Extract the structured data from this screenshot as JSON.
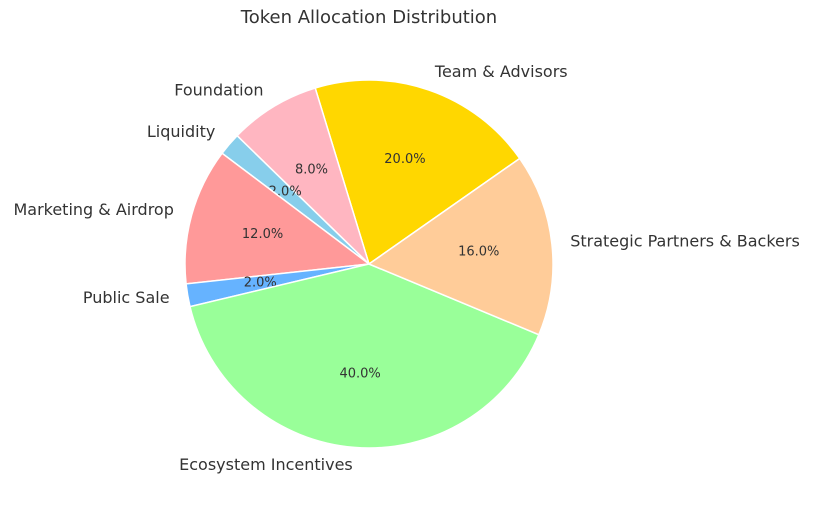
{
  "chart_data": {
    "type": "pie",
    "title": "Token Allocation Distribution",
    "categories": [
      "Team & Advisors",
      "Foundation",
      "Liquidity",
      "Marketing & Airdrop",
      "Public Sale",
      "Ecosystem Incentives",
      "Strategic Partners & Backers"
    ],
    "values": [
      20,
      8,
      2,
      12,
      2,
      40,
      16
    ],
    "value_labels": [
      "20.0%",
      "8.0%",
      "2.0%",
      "12.0%",
      "2.0%",
      "40.0%",
      "16.0%"
    ],
    "colors": [
      "#ffd700",
      "#ffb6c1",
      "#87ceeb",
      "#ff9999",
      "#66b3ff",
      "#99ff99",
      "#ffcc99"
    ]
  }
}
